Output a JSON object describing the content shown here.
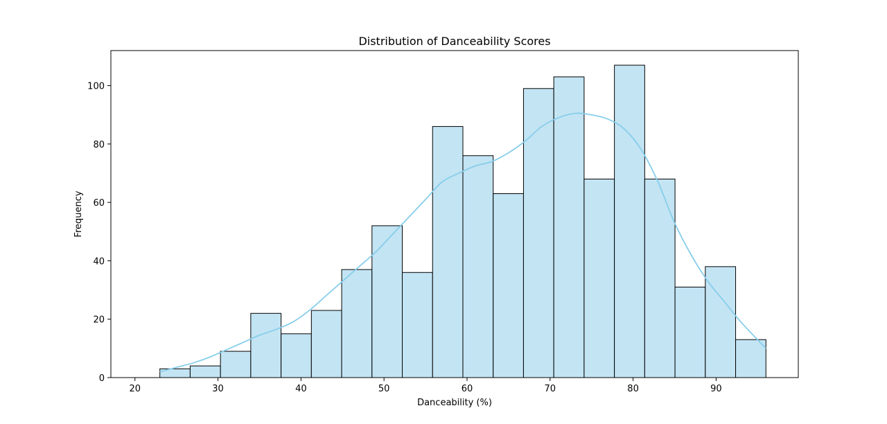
{
  "chart_data": {
    "type": "bar",
    "title": "Distribution of Danceability Scores",
    "xlabel": "Danceability (%)",
    "ylabel": "Frequency",
    "xlim": [
      17.1,
      99.9
    ],
    "ylim": [
      0,
      112
    ],
    "x_ticks": [
      20,
      30,
      40,
      50,
      60,
      70,
      80,
      90
    ],
    "y_ticks": [
      0,
      20,
      40,
      60,
      80,
      100
    ],
    "grid": false,
    "bin_start": 23,
    "bin_width": 3.65,
    "values": [
      3,
      4,
      9,
      22,
      15,
      23,
      37,
      52,
      36,
      86,
      76,
      63,
      99,
      103,
      68,
      107,
      68,
      31,
      38,
      13
    ],
    "kde": {
      "x": [
        23,
        25,
        27,
        29,
        31,
        33,
        35,
        37,
        39,
        41,
        43,
        45,
        47,
        49,
        51,
        53,
        55,
        57,
        59,
        61,
        63,
        65,
        67,
        69,
        71,
        73,
        75,
        77,
        79,
        81,
        83,
        85,
        87,
        89,
        91,
        93,
        96
      ],
      "y": [
        2,
        3.5,
        5,
        7,
        9.5,
        12,
        14.5,
        16.5,
        19,
        23,
        28,
        33,
        38,
        43,
        49,
        55,
        61,
        67,
        70,
        72.5,
        74,
        77,
        81,
        86,
        89,
        90.5,
        90,
        88.5,
        85,
        78,
        67,
        53,
        42,
        33,
        26,
        19,
        10
      ]
    },
    "colors": {
      "bar_fill": "#c3e4f3",
      "bar_edge": "#000000",
      "kde_line": "#87ceeb"
    }
  }
}
